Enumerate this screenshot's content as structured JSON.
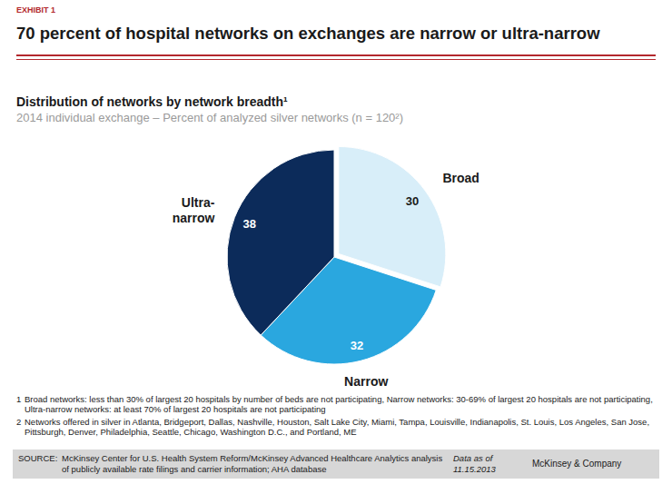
{
  "header": {
    "exhibit": "EXHIBIT 1",
    "title": "70 percent of hospital networks on exchanges are narrow or ultra-narrow"
  },
  "chart_data": {
    "type": "pie",
    "title": "Distribution of networks by network breadth¹",
    "subtitle": "2014 individual exchange – Percent of analyzed silver networks (n = 120²)",
    "categories": [
      "Broad",
      "Narrow",
      "Ultra-narrow"
    ],
    "values": [
      30,
      32,
      38
    ],
    "colors": [
      "#d8eef9",
      "#2aa7df",
      "#0c2b5a"
    ],
    "data_labels": true
  },
  "footnotes": [
    {
      "marker": "1",
      "text": "Broad networks:  less than 30% of largest 20 hospitals by number of beds are not participating, Narrow networks:  30-69% of largest 20 hospitals are not participating, Ultra-narrow networks:  at least 70% of largest 20 hospitals are not participating"
    },
    {
      "marker": "2",
      "text": "Networks offered in silver in Atlanta, Bridgeport, Dallas, Nashville, Houston, Salt Lake City, Miami, Tampa, Louisville, Indianapolis, St. Louis, Los Angeles, San Jose, Pittsburgh, Denver, Philadelphia, Seattle, Chicago, Washington D.C., and Portland, ME"
    }
  ],
  "source": {
    "label": "SOURCE:",
    "text": "McKinsey Center for U.S. Health System Reform/McKinsey Advanced Healthcare Analytics analysis of publicly available rate filings and carrier information; AHA database"
  },
  "data_date": {
    "label": "Data as of",
    "date": "11.15.2013"
  },
  "brand": "McKinsey & Company"
}
